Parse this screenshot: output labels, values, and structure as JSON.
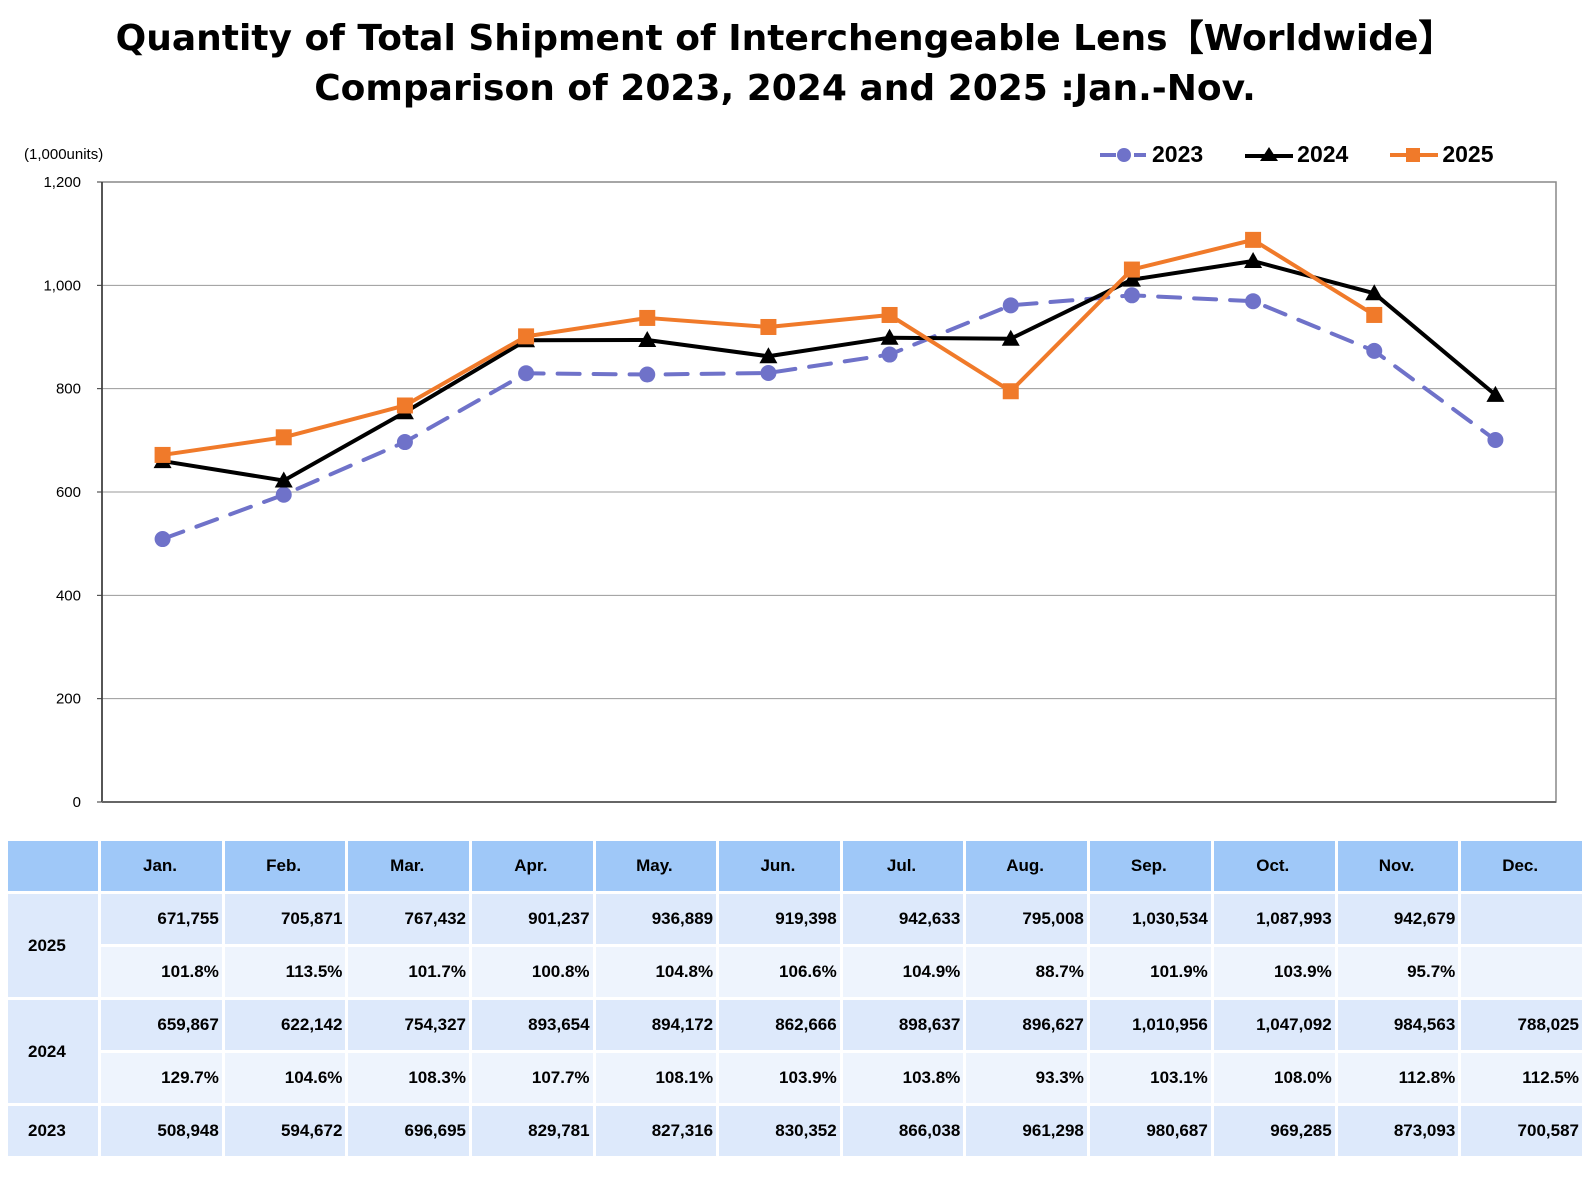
{
  "title": {
    "line1": "Quantity of Total Shipment of Interchengeable Lens【Worldwide】",
    "line2": "Comparison of 2023, 2024 and 2025 :Jan.-Nov."
  },
  "unit_label": "(1,000units)",
  "legend": [
    {
      "name": "2023",
      "color": "#6f72c9",
      "marker": "circle",
      "line": "dashed"
    },
    {
      "name": "2024",
      "color": "#000000",
      "marker": "triangle",
      "line": "solid"
    },
    {
      "name": "2025",
      "color": "#f07a2a",
      "marker": "square",
      "line": "solid"
    }
  ],
  "chart_data": {
    "type": "line",
    "title": "Quantity of Total Shipment of Interchengeable Lens【Worldwide】 Comparison of 2023, 2024 and 2025 :Jan.-Nov.",
    "xlabel": "",
    "ylabel": "(1,000units)",
    "ylim": [
      0,
      1200
    ],
    "yticks": [
      0,
      200,
      400,
      600,
      800,
      1000,
      1200
    ],
    "ytick_labels": [
      "0",
      "200",
      "400",
      "600",
      "800",
      "1,000",
      "1,200"
    ],
    "grid": true,
    "legend_position": "top-right",
    "categories": [
      "Jan.",
      "Feb.",
      "Mar.",
      "Apr.",
      "May.",
      "Jun.",
      "Jul.",
      "Aug.",
      "Sep.",
      "Oct.",
      "Nov.",
      "Dec."
    ],
    "series": [
      {
        "name": "2023",
        "color": "#6f72c9",
        "marker": "circle",
        "dashed": true,
        "values": [
          508.948,
          594.672,
          696.695,
          829.781,
          827.316,
          830.352,
          866.038,
          961.298,
          980.687,
          969.285,
          873.093,
          700.587
        ]
      },
      {
        "name": "2024",
        "color": "#000000",
        "marker": "triangle",
        "dashed": false,
        "values": [
          659.867,
          622.142,
          754.327,
          893.654,
          894.172,
          862.666,
          898.637,
          896.627,
          1010.956,
          1047.092,
          984.563,
          788.025
        ]
      },
      {
        "name": "2025",
        "color": "#f07a2a",
        "marker": "square",
        "dashed": false,
        "values": [
          671.755,
          705.871,
          767.432,
          901.237,
          936.889,
          919.398,
          942.633,
          795.008,
          1030.534,
          1087.993,
          942.679,
          null
        ]
      }
    ]
  },
  "table": {
    "header": [
      "",
      "Jan.",
      "Feb.",
      "Mar.",
      "Apr.",
      "May.",
      "Jun.",
      "Jul.",
      "Aug.",
      "Sep.",
      "Oct.",
      "Nov.",
      "Dec."
    ],
    "rows": [
      {
        "year": "2025",
        "values": [
          "671,755",
          "705,871",
          "767,432",
          "901,237",
          "936,889",
          "919,398",
          "942,633",
          "795,008",
          "1,030,534",
          "1,087,993",
          "942,679",
          ""
        ],
        "pct": [
          "101.8%",
          "113.5%",
          "101.7%",
          "100.8%",
          "104.8%",
          "106.6%",
          "104.9%",
          "88.7%",
          "101.9%",
          "103.9%",
          "95.7%",
          ""
        ]
      },
      {
        "year": "2024",
        "values": [
          "659,867",
          "622,142",
          "754,327",
          "893,654",
          "894,172",
          "862,666",
          "898,637",
          "896,627",
          "1,010,956",
          "1,047,092",
          "984,563",
          "788,025"
        ],
        "pct": [
          "129.7%",
          "104.6%",
          "108.3%",
          "107.7%",
          "108.1%",
          "103.9%",
          "103.8%",
          "93.3%",
          "103.1%",
          "108.0%",
          "112.8%",
          "112.5%"
        ]
      },
      {
        "year": "2023",
        "values": [
          "508,948",
          "594,672",
          "696,695",
          "829,781",
          "827,316",
          "830,352",
          "866,038",
          "961,298",
          "980,687",
          "969,285",
          "873,093",
          "700,587"
        ]
      }
    ]
  }
}
